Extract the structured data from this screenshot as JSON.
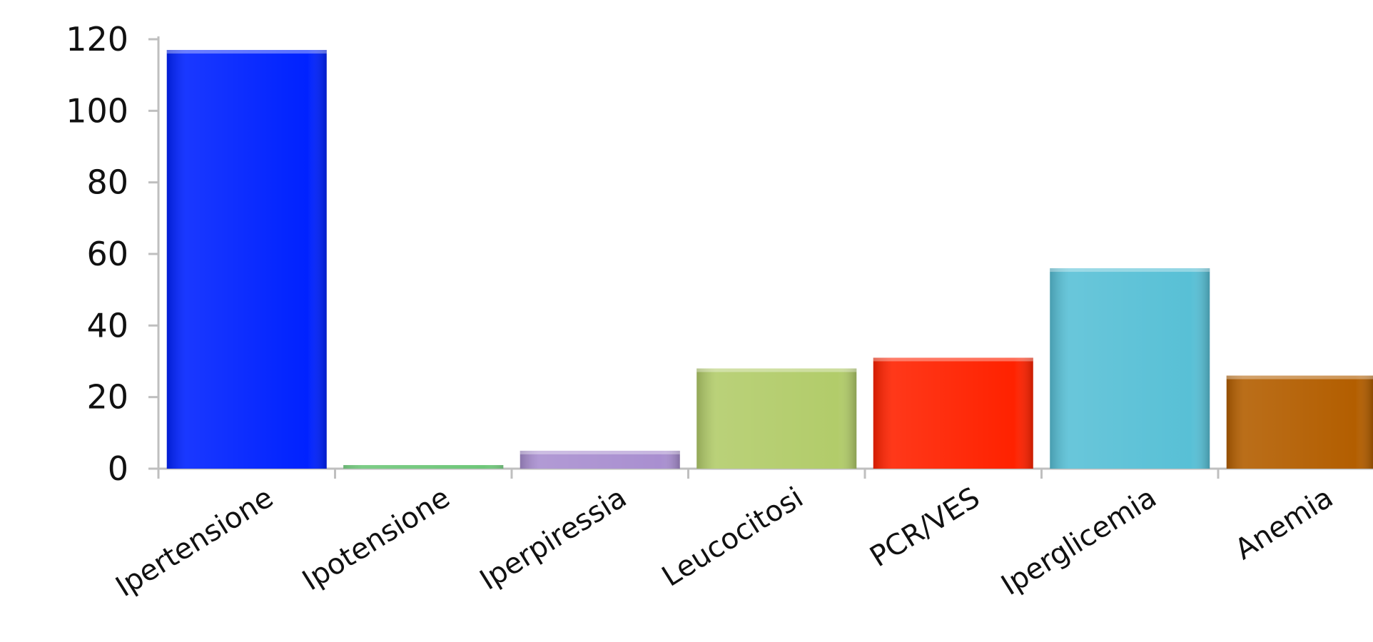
{
  "chart_data": {
    "type": "bar",
    "title": "",
    "xlabel": "",
    "ylabel": "",
    "categories": [
      "Ipertensione",
      "Ipotensione",
      "Iperpiressia",
      "Leucocitosi",
      "PCR/VES",
      "Iperglicemia",
      "Anemia"
    ],
    "values": [
      117,
      1,
      5,
      28,
      31,
      56,
      26
    ],
    "colors": [
      "#0022ff",
      "#22aa33",
      "#a98fd0",
      "#b2cc6a",
      "#ff2200",
      "#58c0d6",
      "#b35e00"
    ],
    "ylim": [
      0,
      120
    ],
    "yticks": [
      0,
      20,
      40,
      60,
      80,
      100,
      120
    ],
    "grid": false,
    "legend": "none"
  }
}
